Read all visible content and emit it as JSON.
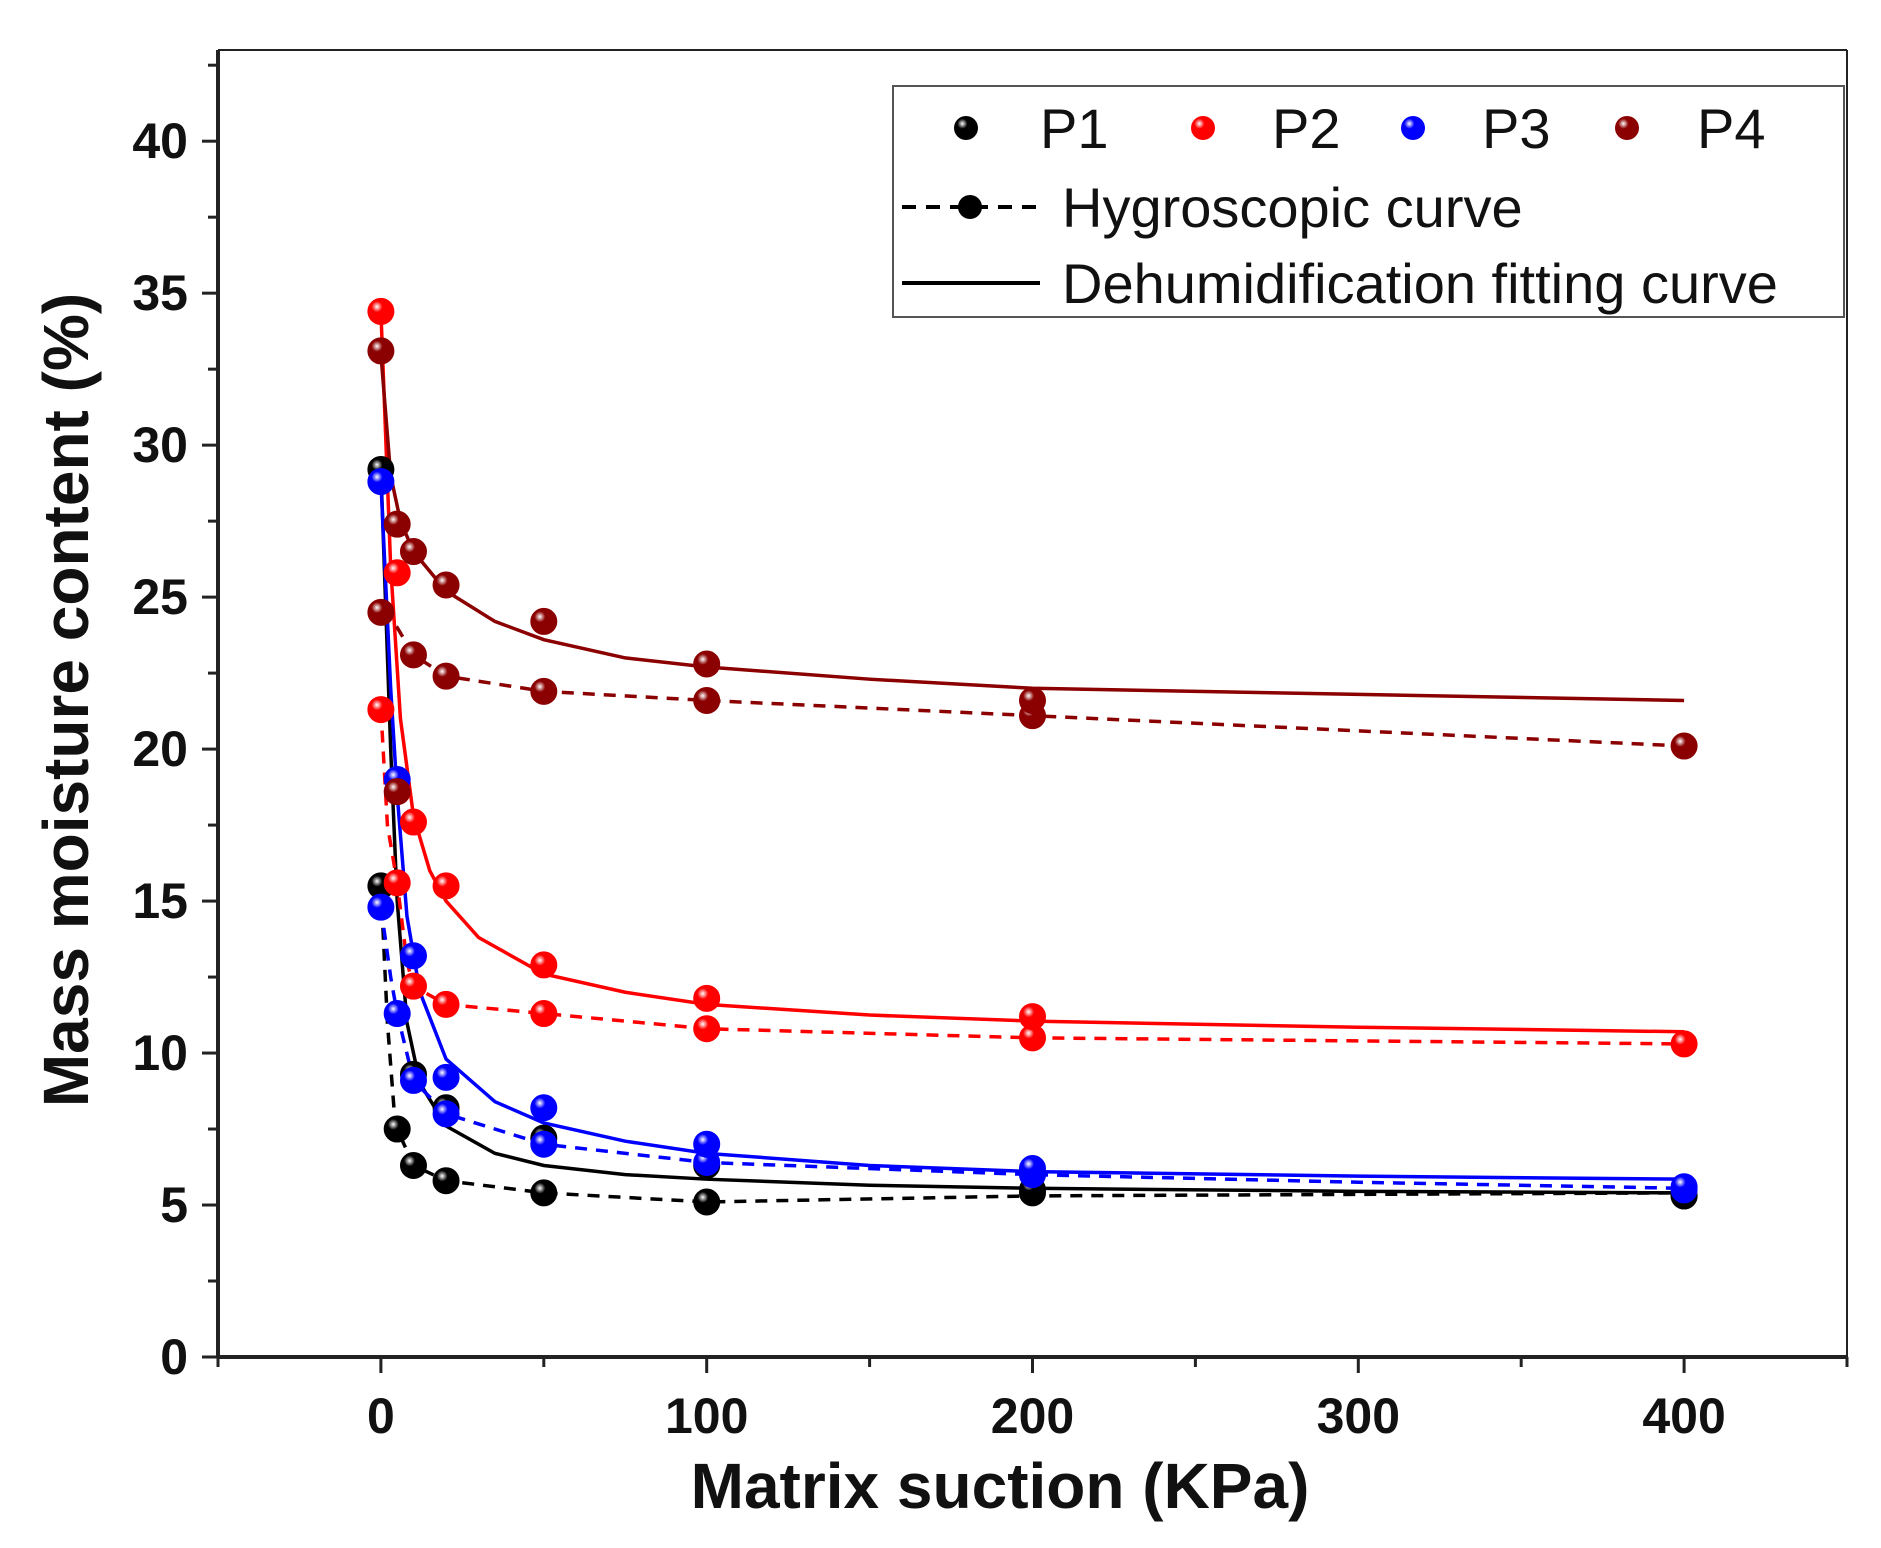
{
  "chart_data": {
    "type": "scatter",
    "xlabel": "Matrix suction (KPa)",
    "ylabel": "Mass moisture content (%)",
    "xlim": [
      -50,
      450
    ],
    "ylim": [
      0,
      43
    ],
    "x_ticks": [
      0,
      100,
      200,
      300,
      400
    ],
    "y_ticks": [
      0,
      5,
      10,
      15,
      20,
      25,
      30,
      35,
      40
    ],
    "legend": {
      "position": "top-right",
      "series_entries": [
        "P1",
        "P2",
        "P3",
        "P4"
      ],
      "hygroscopic_label": "Hygroscopic curve",
      "fitting_label": "Dehumidification fitting curve"
    },
    "series": [
      {
        "name": "P1",
        "color": "#000000",
        "dehumidification_points": [
          [
            0,
            29.2
          ],
          [
            10,
            9.3
          ],
          [
            20,
            8.2
          ],
          [
            50,
            7.2
          ],
          [
            100,
            6.3
          ],
          [
            200,
            5.5
          ],
          [
            400,
            5.3
          ]
        ],
        "hygroscopic_points": [
          [
            0,
            15.5
          ],
          [
            5,
            7.5
          ],
          [
            10,
            6.3
          ],
          [
            20,
            5.8
          ],
          [
            50,
            5.4
          ],
          [
            100,
            5.1
          ],
          [
            200,
            5.4
          ],
          [
            400,
            5.3
          ]
        ],
        "hygroscopic_curve": [
          [
            0,
            15.5
          ],
          [
            2,
            11.0
          ],
          [
            4,
            8.2
          ],
          [
            5,
            7.5
          ],
          [
            10,
            6.3
          ],
          [
            20,
            5.8
          ],
          [
            50,
            5.4
          ],
          [
            100,
            5.1
          ],
          [
            200,
            5.3
          ],
          [
            300,
            5.35
          ],
          [
            400,
            5.4
          ]
        ],
        "fit_curve": [
          [
            0,
            29.2
          ],
          [
            3,
            20.0
          ],
          [
            5,
            15.0
          ],
          [
            8,
            11.0
          ],
          [
            12,
            9.0
          ],
          [
            20,
            7.6
          ],
          [
            35,
            6.7
          ],
          [
            50,
            6.3
          ],
          [
            75,
            6.0
          ],
          [
            100,
            5.85
          ],
          [
            150,
            5.65
          ],
          [
            200,
            5.55
          ],
          [
            300,
            5.45
          ],
          [
            400,
            5.4
          ]
        ]
      },
      {
        "name": "P2",
        "color": "#ff0000",
        "dehumidification_points": [
          [
            0,
            34.4
          ],
          [
            5,
            25.8
          ],
          [
            10,
            17.6
          ],
          [
            20,
            15.5
          ],
          [
            50,
            12.9
          ],
          [
            100,
            11.8
          ],
          [
            200,
            11.2
          ],
          [
            400,
            10.3
          ]
        ],
        "hygroscopic_points": [
          [
            0,
            21.3
          ],
          [
            5,
            15.6
          ],
          [
            10,
            12.2
          ],
          [
            20,
            11.6
          ],
          [
            50,
            11.3
          ],
          [
            100,
            10.8
          ],
          [
            200,
            10.5
          ]
        ],
        "hygroscopic_curve": [
          [
            0,
            21.3
          ],
          [
            2,
            17.5
          ],
          [
            5,
            15.6
          ],
          [
            8,
            13.0
          ],
          [
            10,
            12.2
          ],
          [
            20,
            11.6
          ],
          [
            50,
            11.3
          ],
          [
            100,
            10.8
          ],
          [
            200,
            10.5
          ],
          [
            300,
            10.4
          ],
          [
            400,
            10.3
          ]
        ],
        "fit_curve": [
          [
            0,
            34.4
          ],
          [
            3,
            26.0
          ],
          [
            6,
            21.0
          ],
          [
            10,
            17.8
          ],
          [
            15,
            16.0
          ],
          [
            20,
            15.0
          ],
          [
            30,
            13.8
          ],
          [
            50,
            12.6
          ],
          [
            75,
            12.0
          ],
          [
            100,
            11.6
          ],
          [
            150,
            11.25
          ],
          [
            200,
            11.05
          ],
          [
            300,
            10.85
          ],
          [
            400,
            10.7
          ]
        ]
      },
      {
        "name": "P3",
        "color": "#0000ff",
        "dehumidification_points": [
          [
            0,
            28.8
          ],
          [
            5,
            19.0
          ],
          [
            10,
            13.2
          ],
          [
            20,
            9.2
          ],
          [
            50,
            8.2
          ],
          [
            100,
            7.0
          ],
          [
            200,
            6.2
          ],
          [
            400,
            5.6
          ]
        ],
        "hygroscopic_points": [
          [
            0,
            14.8
          ],
          [
            5,
            11.3
          ],
          [
            10,
            9.1
          ],
          [
            20,
            8.0
          ],
          [
            50,
            7.0
          ],
          [
            100,
            6.4
          ],
          [
            200,
            6.0
          ],
          [
            400,
            5.5
          ]
        ],
        "hygroscopic_curve": [
          [
            0,
            14.8
          ],
          [
            3,
            12.5
          ],
          [
            5,
            11.3
          ],
          [
            10,
            9.1
          ],
          [
            20,
            8.0
          ],
          [
            50,
            7.0
          ],
          [
            100,
            6.4
          ],
          [
            200,
            6.0
          ],
          [
            300,
            5.75
          ],
          [
            400,
            5.55
          ]
        ],
        "fit_curve": [
          [
            0,
            28.8
          ],
          [
            3,
            22.0
          ],
          [
            5,
            18.5
          ],
          [
            8,
            14.5
          ],
          [
            12,
            12.0
          ],
          [
            20,
            9.8
          ],
          [
            35,
            8.4
          ],
          [
            50,
            7.7
          ],
          [
            75,
            7.1
          ],
          [
            100,
            6.7
          ],
          [
            150,
            6.3
          ],
          [
            200,
            6.1
          ],
          [
            300,
            5.95
          ],
          [
            400,
            5.85
          ]
        ]
      },
      {
        "name": "P4",
        "color": "#8b0000",
        "dehumidification_points": [
          [
            0,
            33.1
          ],
          [
            5,
            27.4
          ],
          [
            10,
            26.5
          ],
          [
            20,
            25.4
          ],
          [
            50,
            24.2
          ],
          [
            100,
            22.8
          ],
          [
            200,
            21.6
          ]
        ],
        "hygroscopic_points": [
          [
            0,
            24.5
          ],
          [
            5,
            18.6
          ],
          [
            10,
            23.1
          ],
          [
            20,
            22.4
          ],
          [
            50,
            21.9
          ],
          [
            100,
            21.6
          ],
          [
            200,
            21.1
          ],
          [
            400,
            20.1
          ]
        ],
        "hygroscopic_curve": [
          [
            0,
            24.5
          ],
          [
            5,
            24.0
          ],
          [
            10,
            23.1
          ],
          [
            20,
            22.4
          ],
          [
            50,
            21.9
          ],
          [
            100,
            21.6
          ],
          [
            200,
            21.1
          ],
          [
            300,
            20.6
          ],
          [
            400,
            20.1
          ]
        ],
        "fit_curve": [
          [
            0,
            33.0
          ],
          [
            3,
            29.0
          ],
          [
            6,
            27.5
          ],
          [
            10,
            26.5
          ],
          [
            20,
            25.2
          ],
          [
            35,
            24.2
          ],
          [
            50,
            23.6
          ],
          [
            75,
            23.0
          ],
          [
            100,
            22.7
          ],
          [
            150,
            22.3
          ],
          [
            200,
            22.0
          ],
          [
            300,
            21.8
          ],
          [
            400,
            21.6
          ]
        ]
      }
    ]
  }
}
